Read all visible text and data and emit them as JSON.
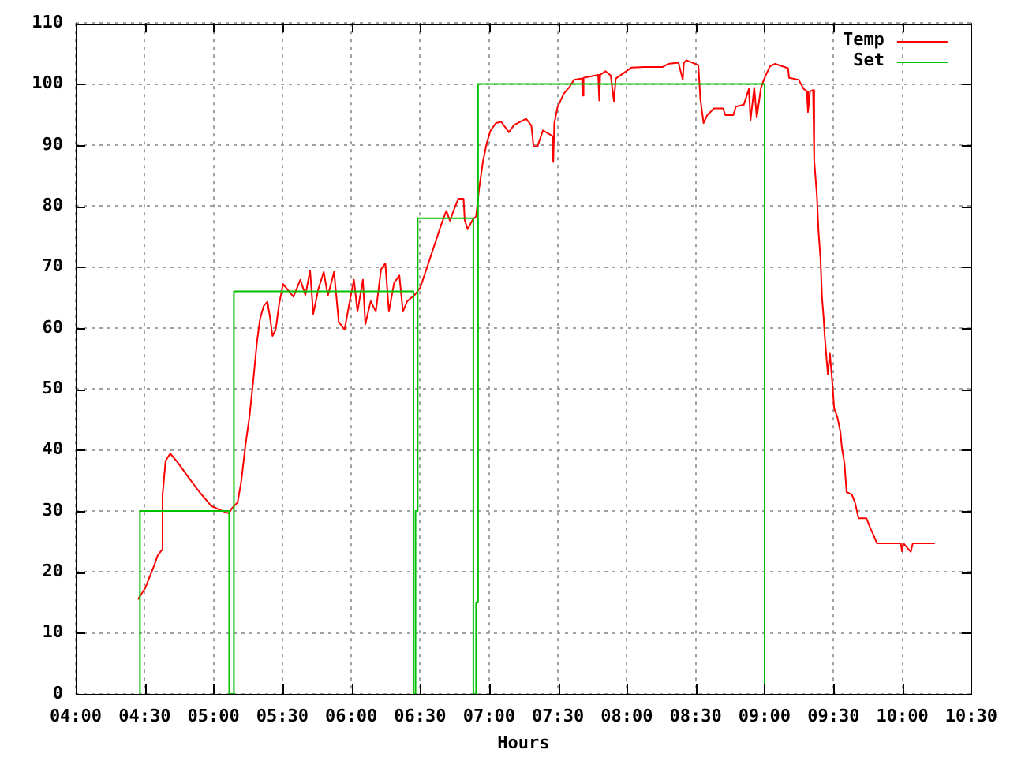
{
  "chart_data": {
    "type": "line",
    "xlabel": "Hours",
    "xlim": [
      4,
      10.5
    ],
    "xticks": [
      {
        "value": 4,
        "label": "04:00"
      },
      {
        "value": 4.5,
        "label": "04:30"
      },
      {
        "value": 5,
        "label": "05:00"
      },
      {
        "value": 5.5,
        "label": "05:30"
      },
      {
        "value": 6,
        "label": "06:00"
      },
      {
        "value": 6.5,
        "label": "06:30"
      },
      {
        "value": 7,
        "label": "07:00"
      },
      {
        "value": 7.5,
        "label": "07:30"
      },
      {
        "value": 8,
        "label": "08:00"
      },
      {
        "value": 8.5,
        "label": "08:30"
      },
      {
        "value": 9,
        "label": "09:00"
      },
      {
        "value": 9.5,
        "label": "09:30"
      },
      {
        "value": 10,
        "label": "10:00"
      },
      {
        "value": 10.5,
        "label": "10:30"
      }
    ],
    "ylim": [
      0,
      110
    ],
    "yticks": [
      0,
      10,
      20,
      30,
      40,
      50,
      60,
      70,
      80,
      90,
      100,
      110
    ],
    "grid": true,
    "legend": "top right",
    "marker": "none",
    "series": [
      {
        "name": "Temp",
        "color": "#ff0000",
        "x": [
          4.455,
          4.505,
          4.568,
          4.595,
          4.625,
          4.63,
          4.652,
          4.686,
          4.739,
          4.815,
          4.898,
          4.985,
          5.042,
          5.11,
          5.136,
          5.175,
          5.201,
          5.232,
          5.261,
          5.289,
          5.315,
          5.337,
          5.364,
          5.391,
          5.409,
          5.428,
          5.451,
          5.477,
          5.505,
          5.58,
          5.63,
          5.667,
          5.701,
          5.724,
          5.761,
          5.8,
          5.83,
          5.875,
          5.909,
          5.951,
          5.989,
          6.019,
          6.045,
          6.084,
          6.102,
          6.141,
          6.178,
          6.216,
          6.247,
          6.273,
          6.311,
          6.349,
          6.375,
          6.406,
          6.463,
          6.5,
          6.539,
          6.576,
          6.614,
          6.652,
          6.69,
          6.716,
          6.747,
          6.777,
          6.815,
          6.823,
          6.845,
          6.88,
          6.906,
          6.928,
          6.955,
          6.982,
          7.011,
          7.05,
          7.088,
          7.144,
          7.182,
          7.269,
          7.307,
          7.323,
          7.352,
          7.391,
          7.459,
          7.466,
          7.474,
          7.497,
          7.542,
          7.58,
          7.618,
          7.675,
          7.678,
          7.686,
          7.792,
          7.8,
          7.807,
          7.845,
          7.883,
          7.906,
          7.92,
          8.034,
          8.13,
          8.261,
          8.3,
          8.375,
          8.406,
          8.414,
          8.432,
          8.519,
          8.534,
          8.557,
          8.584,
          8.633,
          8.698,
          8.716,
          8.773,
          8.792,
          8.849,
          8.886,
          8.898,
          8.925,
          8.943,
          8.974,
          9.0,
          9.039,
          9.076,
          9.17,
          9.178,
          9.247,
          9.284,
          9.307,
          9.315,
          9.33,
          9.352,
          9.36,
          9.38,
          9.391,
          9.406,
          9.417,
          9.428,
          9.436,
          9.459,
          9.474,
          9.493,
          9.505,
          9.527,
          9.55,
          9.561,
          9.58,
          9.595,
          9.633,
          9.656,
          9.682,
          9.739,
          9.769,
          9.795,
          9.815,
          9.989,
          9.997,
          10.008,
          10.061,
          10.076,
          10.232
        ],
        "values": [
          15.6,
          17.4,
          21.0,
          22.7,
          23.6,
          32.6,
          38.2,
          39.4,
          38.0,
          35.6,
          33.1,
          30.8,
          30.2,
          29.6,
          30.5,
          31.4,
          34.8,
          40.8,
          45.5,
          51.5,
          57.6,
          61.4,
          63.6,
          64.3,
          61.9,
          58.7,
          59.7,
          64.0,
          67.2,
          65.1,
          67.9,
          65.4,
          69.4,
          62.3,
          66.4,
          69.2,
          65.3,
          69.2,
          61.0,
          59.7,
          64.4,
          67.9,
          62.7,
          67.9,
          60.6,
          64.4,
          62.7,
          69.6,
          70.6,
          62.7,
          67.4,
          68.6,
          62.7,
          64.4,
          65.5,
          66.6,
          69.2,
          71.7,
          74.3,
          76.9,
          79.2,
          77.6,
          79.5,
          81.2,
          81.2,
          77.7,
          76.2,
          77.7,
          78.3,
          82.9,
          87.2,
          90.2,
          92.4,
          93.6,
          93.8,
          92.1,
          93.3,
          94.3,
          93.2,
          89.8,
          89.8,
          92.4,
          91.5,
          87.2,
          93.6,
          96.2,
          98.4,
          99.4,
          100.7,
          100.9,
          98.1,
          101.0,
          101.5,
          97.3,
          101.5,
          102.1,
          101.4,
          97.2,
          100.9,
          102.7,
          102.8,
          102.8,
          103.3,
          103.5,
          100.7,
          103.5,
          103.9,
          103.1,
          97.5,
          93.6,
          94.9,
          96.0,
          96.0,
          94.9,
          94.9,
          96.3,
          96.6,
          99.2,
          94.1,
          99.4,
          94.5,
          99.4,
          101.0,
          102.9,
          103.3,
          102.6,
          101.0,
          100.7,
          99.2,
          98.8,
          95.4,
          98.8,
          99.0,
          87.6,
          81.6,
          76.0,
          71.3,
          64.9,
          61.9,
          58.8,
          52.4,
          55.8,
          50.7,
          46.8,
          45.5,
          43.0,
          40.4,
          37.8,
          33.1,
          32.7,
          31.4,
          28.8,
          28.8,
          27.1,
          25.8,
          24.7,
          24.7,
          23.4,
          24.7,
          23.3,
          24.7,
          24.7
        ]
      },
      {
        "name": "Set",
        "type": "step",
        "color": "#00c000",
        "x": [
          4.466,
          4.466,
          5.114,
          5.148,
          6.451,
          6.466,
          6.482,
          6.886,
          6.906,
          6.92,
          9.0
        ],
        "values": [
          0,
          30,
          0,
          66,
          0,
          30,
          78,
          0,
          15,
          100,
          0
        ]
      }
    ]
  }
}
